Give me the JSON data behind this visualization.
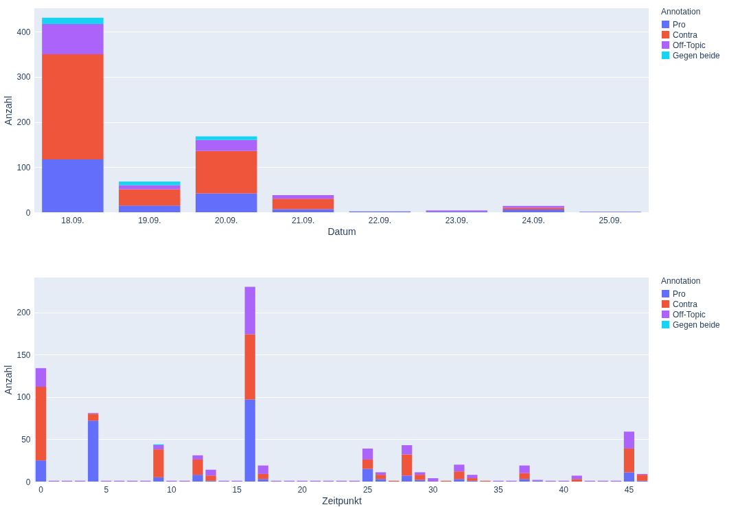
{
  "chart_data": [
    {
      "type": "bar",
      "stacked": true,
      "xlabel": "Datum",
      "ylabel": "Anzahl",
      "legend_title": "Annotation",
      "legend": "top right",
      "grid": "y",
      "categories": [
        "18.09.",
        "19.09.",
        "20.09.",
        "21.09.",
        "22.09.",
        "23.09.",
        "24.09.",
        "25.09."
      ],
      "ylim": [
        0,
        452
      ],
      "yticks": [
        0,
        100,
        200,
        300,
        400
      ],
      "series": [
        {
          "name": "Pro",
          "color": "#636efa",
          "values": [
            117,
            15,
            42,
            7,
            2,
            2,
            6,
            1
          ]
        },
        {
          "name": "Contra",
          "color": "#ef553b",
          "values": [
            233,
            36,
            94,
            23,
            null,
            null,
            4,
            null
          ]
        },
        {
          "name": "Off-Topic",
          "color": "#ab63fa",
          "values": [
            67,
            9,
            24,
            8,
            null,
            2,
            4,
            null
          ]
        },
        {
          "name": "Gegen beide",
          "color": "#19d3f3",
          "values": [
            14,
            8,
            8,
            null,
            null,
            null,
            null,
            null
          ]
        }
      ]
    },
    {
      "type": "bar",
      "stacked": true,
      "xlabel": "Zeitpunkt",
      "ylabel": "Anzahl",
      "legend_title": "Annotation",
      "legend": "top right",
      "grid": "y",
      "categories": [
        "0",
        null,
        null,
        null,
        null,
        "5",
        null,
        null,
        null,
        null,
        "10",
        null,
        null,
        null,
        null,
        "15",
        null,
        null,
        null,
        null,
        "20",
        null,
        null,
        null,
        null,
        "25",
        null,
        null,
        null,
        null,
        "30",
        null,
        null,
        null,
        null,
        "35",
        null,
        null,
        null,
        null,
        "40",
        null,
        null,
        null,
        null,
        "45",
        null
      ],
      "ylim": [
        0,
        241
      ],
      "yticks": [
        0,
        50,
        100,
        150,
        200
      ],
      "series": [
        {
          "name": "Pro",
          "color": "#636efa",
          "values": [
            25,
            null,
            null,
            null,
            72,
            null,
            null,
            null,
            null,
            5,
            null,
            null,
            8,
            1,
            null,
            null,
            97,
            3,
            null,
            null,
            null,
            null,
            null,
            null,
            null,
            15,
            3,
            null,
            7,
            2,
            null,
            null,
            3,
            1,
            null,
            null,
            null,
            3,
            1,
            null,
            null,
            null,
            null,
            null,
            null,
            11,
            1
          ]
        },
        {
          "name": "Contra",
          "color": "#ef553b",
          "values": [
            87,
            null,
            null,
            null,
            8,
            null,
            null,
            null,
            null,
            33,
            null,
            null,
            18,
            6,
            null,
            null,
            77,
            6,
            null,
            null,
            null,
            null,
            null,
            null,
            null,
            11,
            5,
            1,
            25,
            6,
            null,
            1,
            9,
            3,
            1,
            null,
            null,
            7,
            null,
            null,
            null,
            3,
            null,
            null,
            null,
            28,
            7
          ]
        },
        {
          "name": "Off-Topic",
          "color": "#ab63fa",
          "values": [
            22,
            1,
            1,
            1,
            1,
            1,
            1,
            1,
            1,
            5,
            1,
            1,
            5,
            7,
            1,
            1,
            56,
            10,
            1,
            1,
            1,
            1,
            1,
            1,
            1,
            13,
            3,
            null,
            11,
            3,
            4,
            null,
            8,
            4,
            null,
            1,
            1,
            9,
            1,
            1,
            1,
            4,
            1,
            1,
            1,
            20,
            1
          ]
        },
        {
          "name": "Gegen beide",
          "color": "#19d3f3",
          "values": [
            null,
            null,
            null,
            null,
            null,
            null,
            null,
            null,
            null,
            1,
            null,
            null,
            null,
            null,
            null,
            null,
            null,
            null,
            null,
            null,
            null,
            null,
            null,
            null,
            null,
            null,
            null,
            null,
            null,
            null,
            null,
            null,
            null,
            null,
            null,
            null,
            null,
            null,
            null,
            null,
            null,
            null,
            null,
            null,
            null,
            null,
            null
          ]
        }
      ]
    }
  ]
}
